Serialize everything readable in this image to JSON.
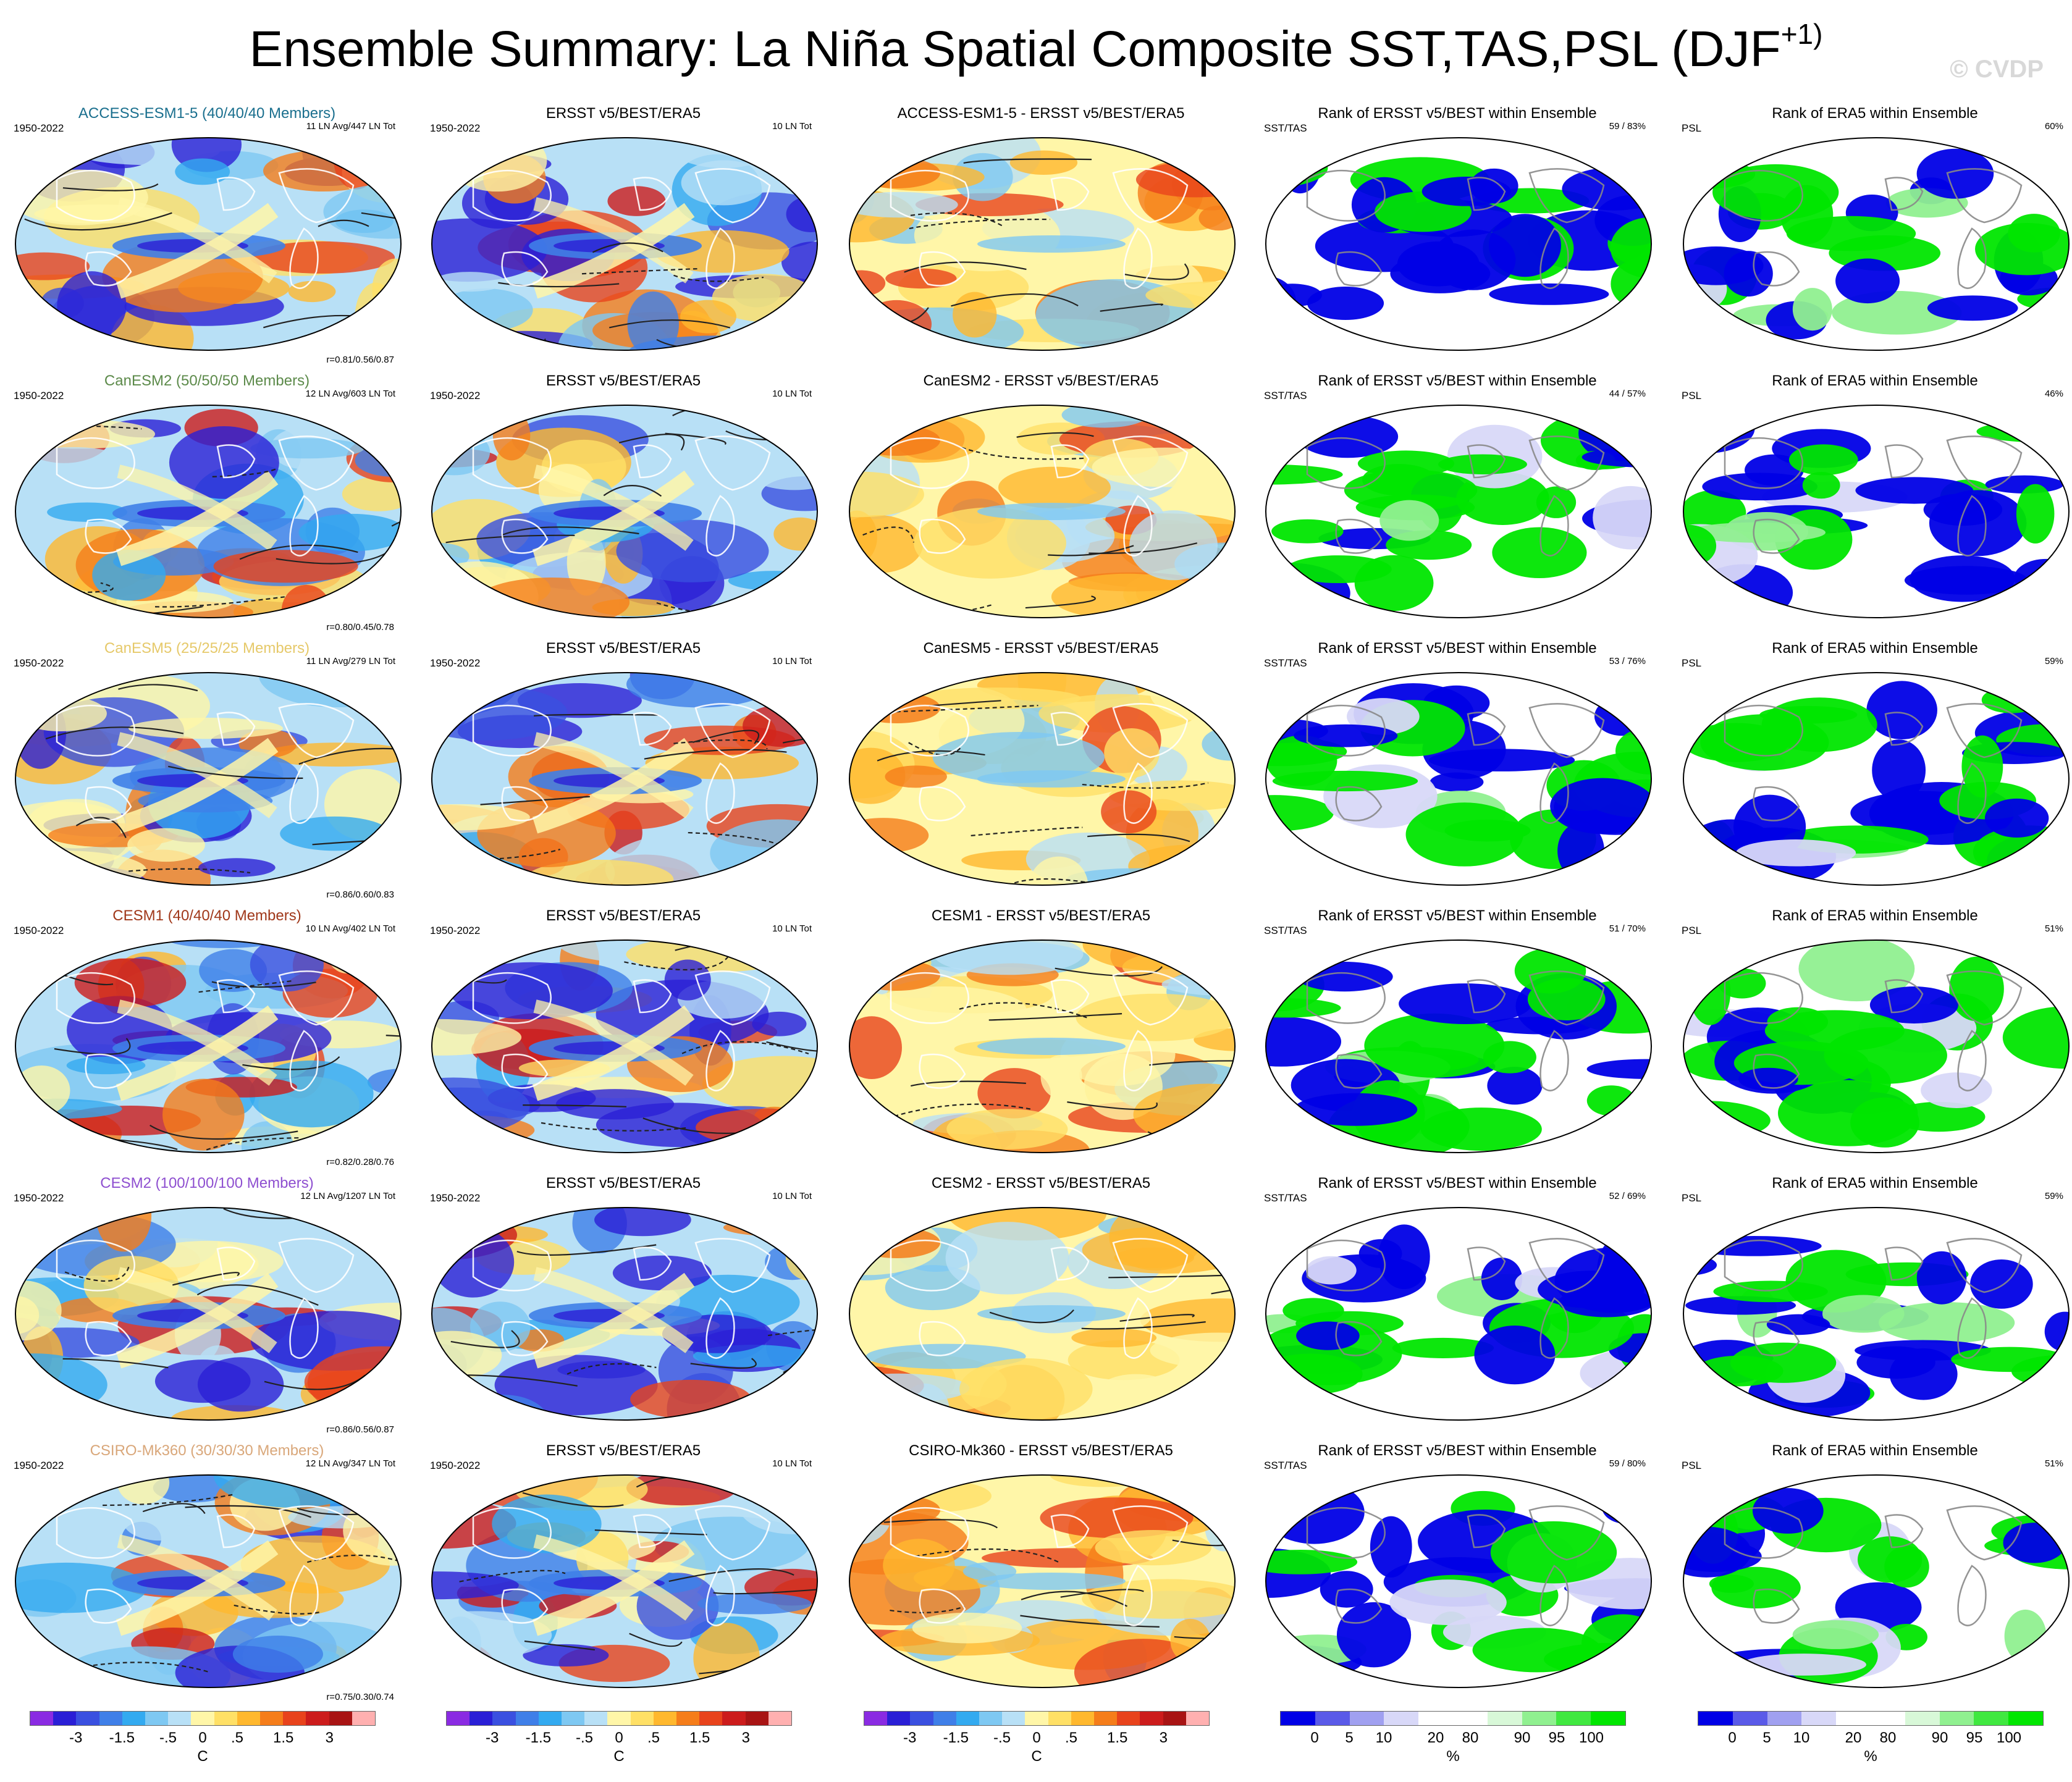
{
  "page": {
    "title": "Ensemble Summary: La Niña Spatial Composite SST,TAS,PSL (DJF",
    "title_sup": "+1)",
    "watermark": "© CVDP"
  },
  "chart_data": {
    "type": "heatmap",
    "projection": "global map (Hammer/Robinson-like), 6 rows x 5 columns of panels",
    "columns": [
      "model ensemble mean composite",
      "observations composite",
      "model minus observations",
      "rank of ERSST v5/BEST within ensemble",
      "rank of ERA5 within ensemble"
    ],
    "rows": [
      {
        "model": "ACCESS-ESM1-5 (40/40/40 Members)",
        "model_color": "#1a6f8e",
        "period": "1950-2022",
        "model_counts": "11 LN Avg/447 LN Tot",
        "correlations": "r=0.81/0.56/0.87",
        "obs_title": "ERSST v5/BEST/ERA5",
        "obs_counts": "10 LN Tot",
        "diff_title": "ACCESS-ESM1-5 - ERSST v5/BEST/ERA5",
        "rank_sst_title": "Rank of ERSST v5/BEST within Ensemble",
        "rank_sst_label": "SST/TAS",
        "rank_sst_value": "59 /  83%",
        "rank_psl_title": "Rank of ERA5 within Ensemble",
        "rank_psl_label": "PSL",
        "rank_psl_value": "60%"
      },
      {
        "model": "CanESM2 (50/50/50 Members)",
        "model_color": "#5c8a4a",
        "period": "1950-2022",
        "model_counts": "12 LN Avg/603 LN Tot",
        "correlations": "r=0.80/0.45/0.78",
        "obs_title": "ERSST v5/BEST/ERA5",
        "obs_counts": "10 LN Tot",
        "diff_title": "CanESM2 - ERSST v5/BEST/ERA5",
        "rank_sst_title": "Rank of ERSST v5/BEST within Ensemble",
        "rank_sst_label": "SST/TAS",
        "rank_sst_value": "44 /  57%",
        "rank_psl_title": "Rank of ERA5 within Ensemble",
        "rank_psl_label": "PSL",
        "rank_psl_value": "46%"
      },
      {
        "model": "CanESM5 (25/25/25 Members)",
        "model_color": "#e6c96a",
        "period": "1950-2022",
        "model_counts": "11 LN Avg/279 LN Tot",
        "correlations": "r=0.86/0.60/0.83",
        "obs_title": "ERSST v5/BEST/ERA5",
        "obs_counts": "10 LN Tot",
        "diff_title": "CanESM5 - ERSST v5/BEST/ERA5",
        "rank_sst_title": "Rank of ERSST v5/BEST within Ensemble",
        "rank_sst_label": "SST/TAS",
        "rank_sst_value": "53 /  76%",
        "rank_psl_title": "Rank of ERA5 within Ensemble",
        "rank_psl_label": "PSL",
        "rank_psl_value": "59%"
      },
      {
        "model": "CESM1 (40/40/40 Members)",
        "model_color": "#a0381a",
        "period": "1950-2022",
        "model_counts": "10 LN Avg/402 LN Tot",
        "correlations": "r=0.82/0.28/0.76",
        "obs_title": "ERSST v5/BEST/ERA5",
        "obs_counts": "10 LN Tot",
        "diff_title": "CESM1 - ERSST v5/BEST/ERA5",
        "rank_sst_title": "Rank of ERSST v5/BEST within Ensemble",
        "rank_sst_label": "SST/TAS",
        "rank_sst_value": "51 /  70%",
        "rank_psl_title": "Rank of ERA5 within Ensemble",
        "rank_psl_label": "PSL",
        "rank_psl_value": "51%"
      },
      {
        "model": "CESM2 (100/100/100 Members)",
        "model_color": "#8e4fd0",
        "period": "1950-2022",
        "model_counts": "12 LN Avg/1207 LN Tot",
        "correlations": "r=0.86/0.56/0.87",
        "obs_title": "ERSST v5/BEST/ERA5",
        "obs_counts": "10 LN Tot",
        "diff_title": "CESM2 - ERSST v5/BEST/ERA5",
        "rank_sst_title": "Rank of ERSST v5/BEST within Ensemble",
        "rank_sst_label": "SST/TAS",
        "rank_sst_value": "52 /  69%",
        "rank_psl_title": "Rank of ERA5 within Ensemble",
        "rank_psl_label": "PSL",
        "rank_psl_value": "59%"
      },
      {
        "model": "CSIRO-Mk360 (30/30/30 Members)",
        "model_color": "#d9a77a",
        "period": "1950-2022",
        "model_counts": "12 LN Avg/347 LN Tot",
        "correlations": "r=0.75/0.30/0.74",
        "obs_title": "ERSST v5/BEST/ERA5",
        "obs_counts": "10 LN Tot",
        "diff_title": "CSIRO-Mk360 - ERSST v5/BEST/ERA5",
        "rank_sst_title": "Rank of ERSST v5/BEST within Ensemble",
        "rank_sst_label": "SST/TAS",
        "rank_sst_value": "59 /  80%",
        "rank_psl_title": "Rank of ERA5 within Ensemble",
        "rank_psl_label": "PSL",
        "rank_psl_value": "51%"
      }
    ],
    "temp_colorbar": {
      "colors": [
        "#8a2be2",
        "#2a1fd6",
        "#3a50e0",
        "#3f7fe8",
        "#33aaf0",
        "#7ec8f2",
        "#b8e0f6",
        "#fff6a8",
        "#ffe066",
        "#ffb82e",
        "#f57d1a",
        "#e8431c",
        "#cc1c1c",
        "#a81414",
        "#ffb0b0"
      ],
      "ticks": [
        "-3",
        "-1.5",
        "-.5",
        "0",
        ".5",
        "1.5",
        "3"
      ],
      "tick_positions": [
        2,
        4,
        6,
        7.5,
        9,
        11,
        13
      ],
      "unit": "C"
    },
    "rank_colorbar": {
      "colors": [
        "#0000e6",
        "#5a5ae8",
        "#a0a0f0",
        "#d8d8f8",
        "#ffffff",
        "#ffffff",
        "#d8f8d8",
        "#90f090",
        "#40e840",
        "#00e600"
      ],
      "ticks": [
        "0",
        "5",
        "10",
        "20",
        "80",
        "90",
        "95",
        "100"
      ],
      "tick_positions": [
        1,
        2,
        3,
        4.5,
        5.5,
        7,
        8,
        9
      ],
      "unit": "%"
    }
  }
}
